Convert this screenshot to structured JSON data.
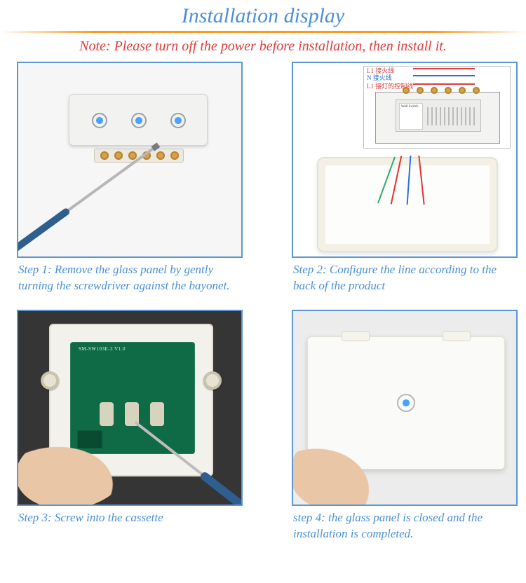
{
  "title": "Installation display",
  "note": "Note: Please turn off the power before installation, then install it.",
  "colors": {
    "heading": "#4a8fd6",
    "warning": "#e23b3b",
    "divider": "#ff8c00",
    "border": "#5a97d4"
  },
  "wire_labels": {
    "l1": "L1 接火线",
    "n": "N 接火线",
    "l1_ctrl": "L1 接灯的控制线"
  },
  "steps": [
    {
      "id": "step1",
      "caption": "Step 1: Remove the glass panel by gently turning the screwdriver against the bayonet.",
      "illustration": {
        "type": "infographic",
        "desc": "3-gang white touch switch front panel with brass terminal strip below; blue-handled screwdriver approaching from bottom-left"
      }
    },
    {
      "id": "step2",
      "caption": "Step 2: Configure the line according to the back of the product",
      "illustration": {
        "type": "infographic",
        "desc": "Wiring diagram (L1 red, N blue, L1-control red) over back-of-switch schematic; white wall back-box with red/blue/green wires emerging"
      }
    },
    {
      "id": "step3",
      "caption": "Step 3: Screw into the cassette",
      "illustration": {
        "type": "infographic",
        "desc": "Green PCB module mounted on white plate, hand with screwdriver fastening side screw"
      }
    },
    {
      "id": "step4",
      "caption": "step 4: the glass panel is closed and the installation is completed.",
      "illustration": {
        "type": "infographic",
        "desc": "Hand pressing finished 1-gang white glass touch panel onto wall"
      }
    }
  ]
}
